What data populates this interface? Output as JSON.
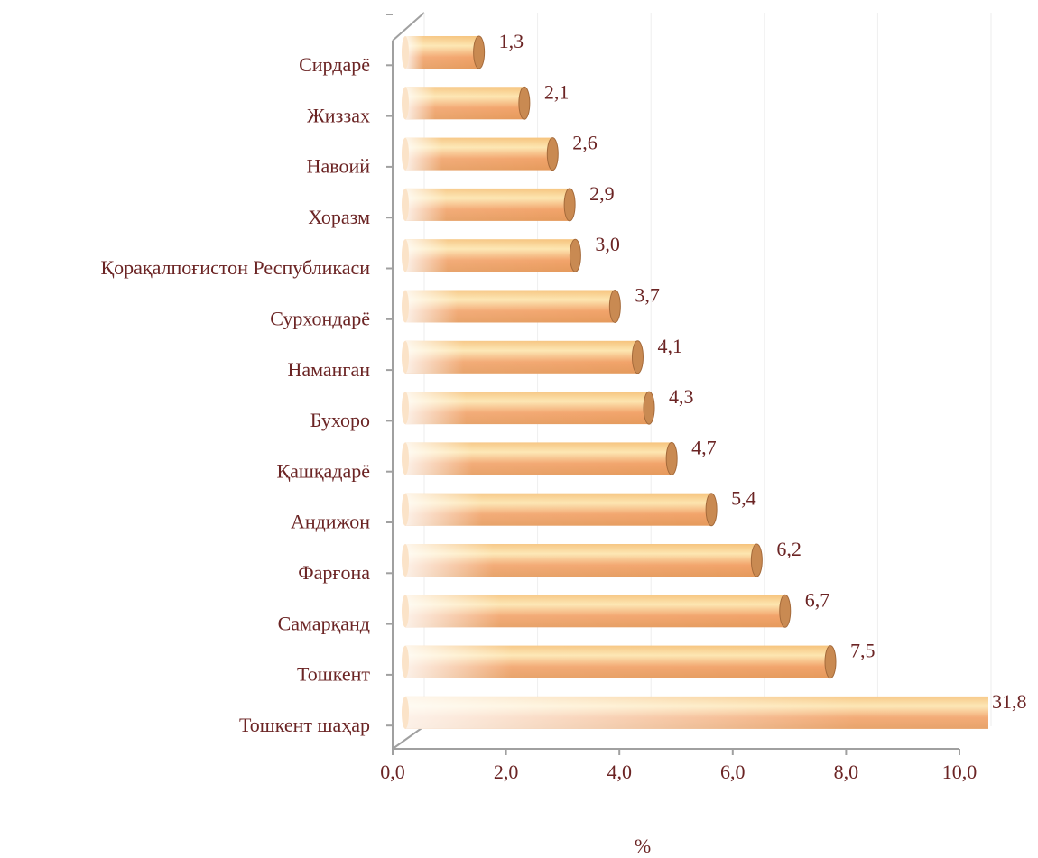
{
  "chart_data": {
    "type": "bar",
    "orientation": "horizontal",
    "categories": [
      "Сирдарё",
      "Жиззах",
      "Навоий",
      "Хоразм",
      "Қорақалпоғистон Республикаси",
      "Сурхондарё",
      "Наманган",
      "Бухоро",
      "Қашқадарё",
      "Андижон",
      "Фарғона",
      "Самарқанд",
      "Тошкент",
      "Тошкент шаҳар"
    ],
    "values": [
      1.3,
      2.1,
      2.6,
      2.9,
      3.0,
      3.7,
      4.1,
      4.3,
      4.7,
      5.4,
      6.2,
      6.7,
      7.5,
      31.8
    ],
    "value_labels": [
      "1,3",
      "2,1",
      "2,6",
      "2,9",
      "3,0",
      "3,7",
      "4,1",
      "4,3",
      "4,7",
      "5,4",
      "6,2",
      "6,7",
      "7,5",
      "31,8"
    ],
    "color": "#f2a36a",
    "xlim": [
      0,
      10
    ],
    "xticks": [
      {
        "value": 0,
        "label": "0,0"
      },
      {
        "value": 2,
        "label": "2,0"
      },
      {
        "value": 4,
        "label": "4,0"
      },
      {
        "value": 6,
        "label": "6,0"
      },
      {
        "value": 8,
        "label": "8,0"
      },
      {
        "value": 10,
        "label": "10,0"
      }
    ],
    "xlabel": "%"
  }
}
